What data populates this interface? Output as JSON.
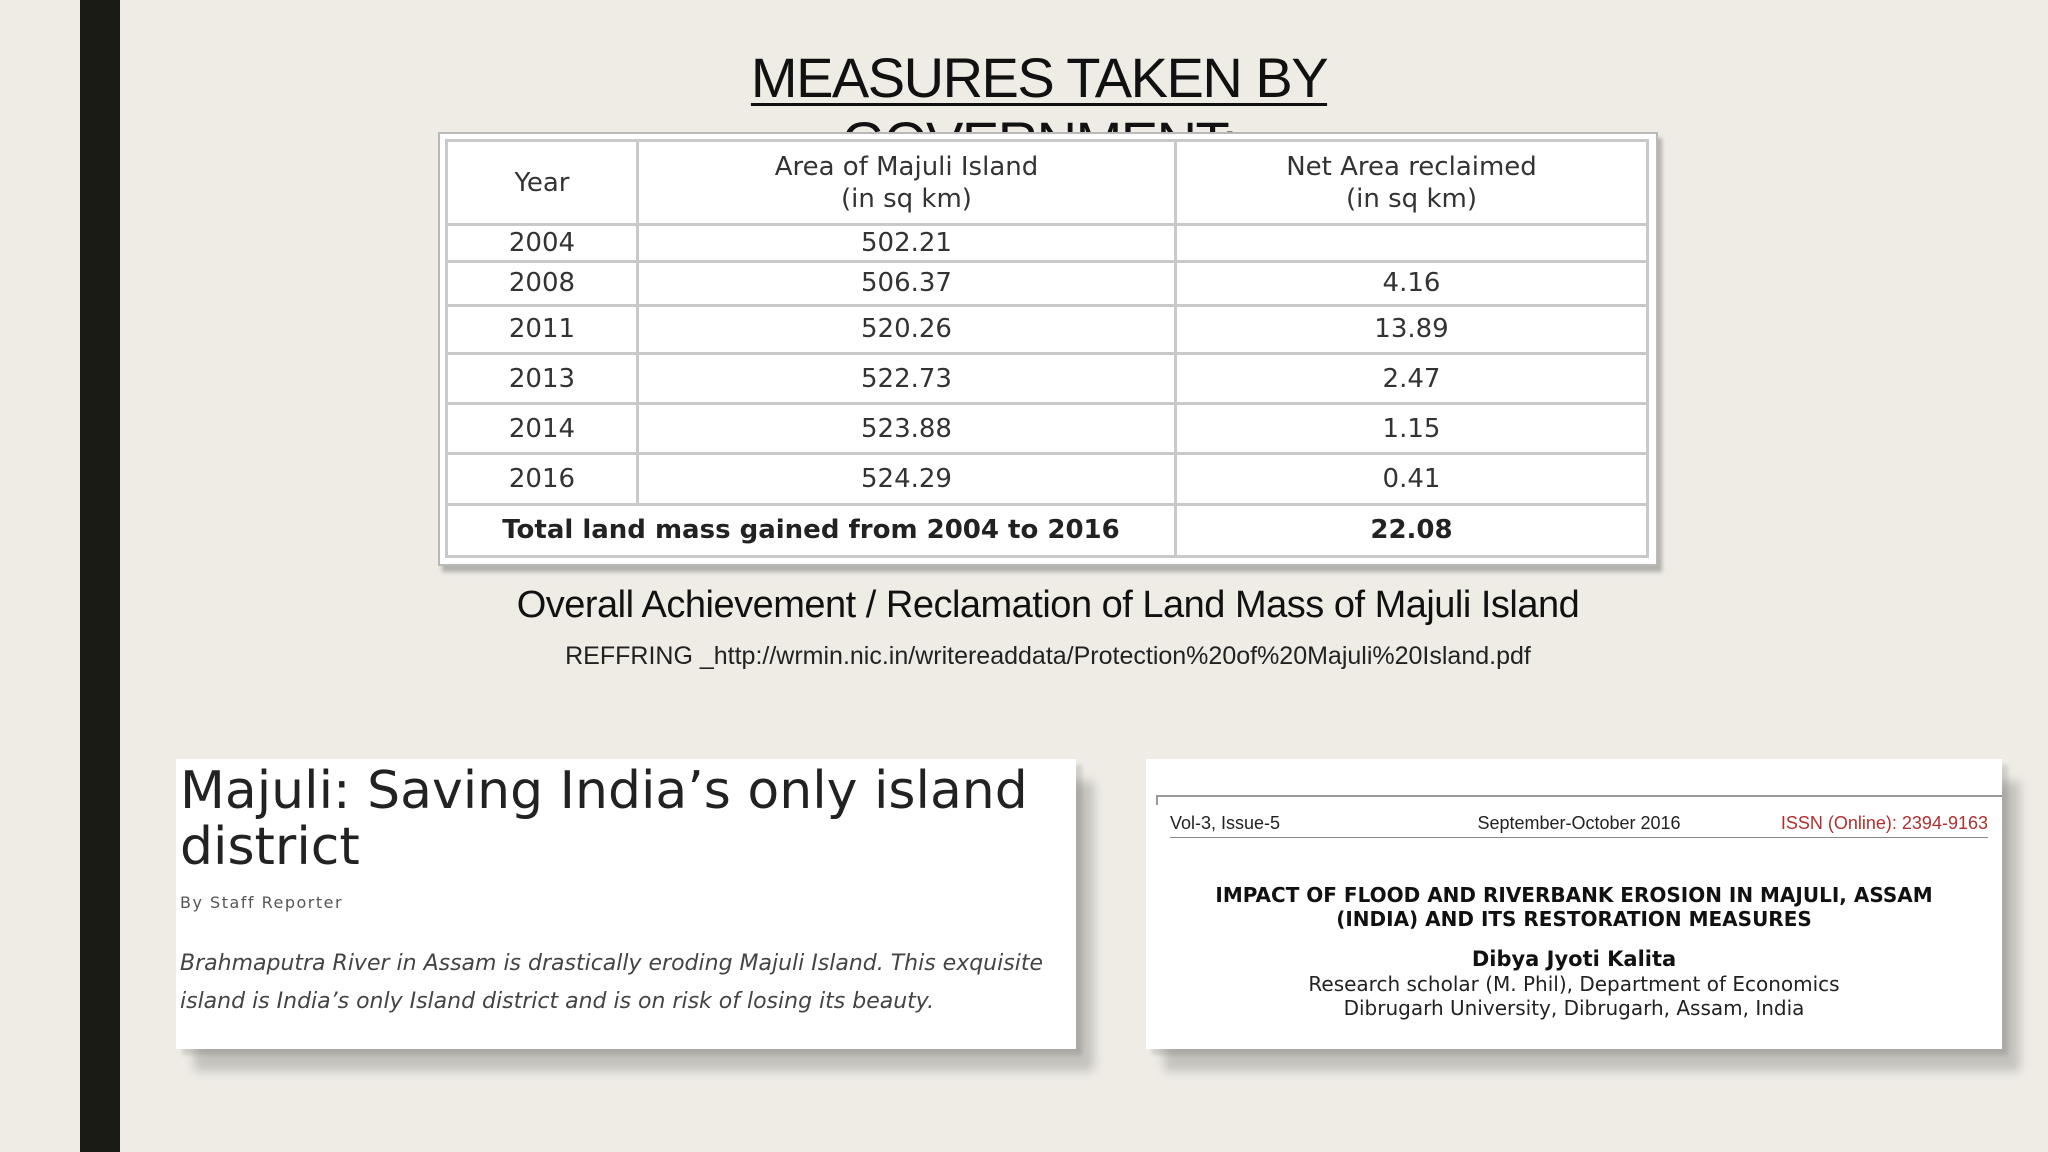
{
  "slide": {
    "title": "MEASURES TAKEN BY GOVERNMENT:"
  },
  "table": {
    "headers": {
      "year": "Year",
      "area_line1": "Area of Majuli Island",
      "area_line2": "(in sq km)",
      "net_line1": "Net Area reclaimed",
      "net_line2": "(in sq km)"
    },
    "rows": [
      {
        "year": "2004",
        "area": "502.21",
        "net": ""
      },
      {
        "year": "2008",
        "area": "506.37",
        "net": "4.16"
      },
      {
        "year": "2011",
        "area": "520.26",
        "net": "13.89"
      },
      {
        "year": "2013",
        "area": "522.73",
        "net": "2.47"
      },
      {
        "year": "2014",
        "area": "523.88",
        "net": "1.15"
      },
      {
        "year": "2016",
        "area": "524.29",
        "net": "0.41"
      }
    ],
    "total_label": "Total land mass gained from 2004 to 2016",
    "total_value": "22.08"
  },
  "caption": "Overall Achievement / Reclamation of Land Mass of Majuli Island",
  "reference": "REFFRING _http://wrmin.nic.in/writereaddata/Protection%20of%20Majuli%20Island.pdf",
  "news_clip": {
    "headline": "Majuli: Saving India’s only island district",
    "byline": "By Staff Reporter",
    "summary": "Brahmaputra River in Assam is drastically eroding Majuli Island. This exquisite island is India’s only Island district and is on risk of losing its beauty."
  },
  "paper_clip": {
    "volume": "Vol-3, Issue-5",
    "date": "September-October 2016",
    "issn": "ISSN (Online): 2394-9163",
    "title_line1": "IMPACT OF FLOOD AND RIVERBANK EROSION IN MAJULI, ASSAM",
    "title_line2": "(INDIA) AND ITS RESTORATION MEASURES",
    "author": "Dibya Jyoti Kalita",
    "affiliation_line1": "Research scholar (M. Phil), Department of Economics",
    "affiliation_line2": "Dibrugarh University, Dibrugarh, Assam, India"
  }
}
